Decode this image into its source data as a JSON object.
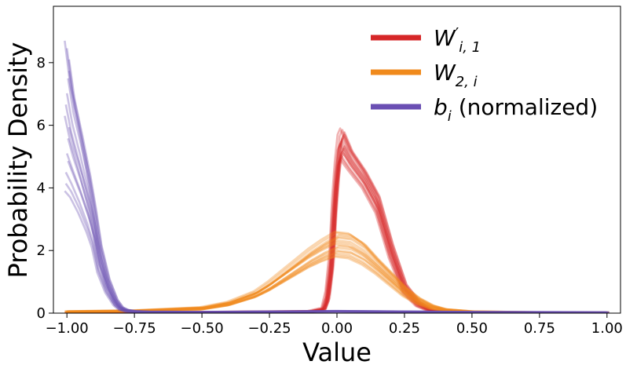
{
  "chart_data": {
    "type": "line",
    "title": "",
    "xlabel": "Value",
    "ylabel": "Probability Density",
    "xlim": [
      -1.05,
      1.05
    ],
    "ylim": [
      0,
      9.8
    ],
    "grid": false,
    "x_ticks": [
      -1.0,
      -0.75,
      -0.5,
      -0.25,
      0.0,
      0.25,
      0.5,
      0.75,
      1.0
    ],
    "x_tick_labels": [
      "−1.00",
      "−0.75",
      "−0.50",
      "−0.25",
      "0.00",
      "0.25",
      "0.50",
      "0.75",
      "1.00"
    ],
    "y_ticks": [
      0,
      2,
      4,
      6,
      8
    ],
    "y_tick_labels": [
      "0",
      "2",
      "4",
      "6",
      "8"
    ],
    "legend_position": "top-right",
    "series": [
      {
        "name": "W'_{i,1}",
        "legend_main": "W",
        "legend_sup": "′",
        "legend_sub": "i, 1",
        "legend_suffix": "",
        "color": "#d62728",
        "x": [
          -1.0,
          -0.1,
          -0.05,
          -0.035,
          -0.02,
          -0.01,
          0.0,
          0.01,
          0.02,
          0.05,
          0.1,
          0.15,
          0.2,
          0.25,
          0.3,
          0.35,
          0.4,
          1.0
        ],
        "y": [
          0.0,
          0.05,
          0.12,
          0.5,
          1.6,
          3.2,
          4.4,
          5.2,
          5.4,
          4.9,
          4.3,
          3.5,
          2.0,
          0.8,
          0.3,
          0.08,
          0.03,
          0.0
        ],
        "spread": [
          0.0,
          0.02,
          0.05,
          0.2,
          0.4,
          0.5,
          0.45,
          0.5,
          0.5,
          0.35,
          0.3,
          0.3,
          0.25,
          0.15,
          0.08,
          0.03,
          0.01,
          0.0
        ]
      },
      {
        "name": "W_{2,i}",
        "legend_main": "W",
        "legend_sup": "",
        "legend_sub": "2, i",
        "legend_suffix": "",
        "color": "#f08a1c",
        "x": [
          -1.0,
          -0.75,
          -0.5,
          -0.4,
          -0.3,
          -0.25,
          -0.2,
          -0.15,
          -0.1,
          -0.05,
          0.0,
          0.05,
          0.1,
          0.15,
          0.2,
          0.25,
          0.3,
          0.35,
          0.4,
          0.5,
          0.75,
          1.0
        ],
        "y": [
          0.05,
          0.07,
          0.15,
          0.3,
          0.6,
          0.85,
          1.15,
          1.45,
          1.75,
          2.0,
          2.2,
          2.15,
          1.9,
          1.5,
          1.1,
          0.7,
          0.4,
          0.2,
          0.1,
          0.04,
          0.02,
          0.02
        ],
        "spread": [
          0.01,
          0.02,
          0.04,
          0.06,
          0.1,
          0.15,
          0.2,
          0.25,
          0.3,
          0.35,
          0.4,
          0.4,
          0.35,
          0.25,
          0.2,
          0.15,
          0.1,
          0.06,
          0.03,
          0.02,
          0.01,
          0.01
        ]
      },
      {
        "name": "b_i (normalized)",
        "legend_main": "b",
        "legend_sup": "",
        "legend_sub": "i",
        "legend_suffix": " (normalized)",
        "color": "#6a4fb3",
        "x": [
          -1.0,
          -0.98,
          -0.95,
          -0.92,
          -0.9,
          -0.88,
          -0.85,
          -0.82,
          -0.8,
          -0.78,
          -0.75,
          -0.7,
          -0.5,
          0.0,
          0.5,
          1.0
        ],
        "y": [
          6.3,
          5.5,
          4.6,
          3.6,
          2.8,
          1.8,
          0.9,
          0.35,
          0.15,
          0.08,
          0.05,
          0.04,
          0.03,
          0.06,
          0.03,
          0.02
        ],
        "spread": [
          2.4,
          1.8,
          1.4,
          1.0,
          0.7,
          0.5,
          0.25,
          0.1,
          0.05,
          0.03,
          0.02,
          0.01,
          0.01,
          0.01,
          0.01,
          0.01
        ]
      }
    ]
  }
}
